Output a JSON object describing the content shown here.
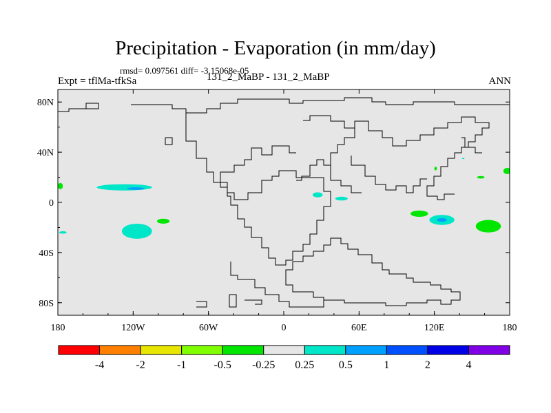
{
  "chart_data": {
    "type": "heatmap",
    "title": "Precipitation - Evaporation (in mm/day)",
    "stats": "rmsd= 0.097561 diff= -3.15068e-05",
    "case_label": "131_2_MaBP - 131_2_MaBP",
    "expt_label": "Expt = tflMa-tfkSa",
    "season": "ANN",
    "xlabel": "",
    "ylabel": "",
    "xlim": [
      -180,
      180
    ],
    "ylim": [
      -90,
      90
    ],
    "x_ticks": [
      {
        "value": -180,
        "label": "180"
      },
      {
        "value": -120,
        "label": "120W"
      },
      {
        "value": -60,
        "label": "60W"
      },
      {
        "value": 0,
        "label": "0"
      },
      {
        "value": 60,
        "label": "60E"
      },
      {
        "value": 120,
        "label": "120E"
      },
      {
        "value": 180,
        "label": "180"
      }
    ],
    "y_ticks": [
      {
        "value": 80,
        "label": "80N"
      },
      {
        "value": 40,
        "label": "40N"
      },
      {
        "value": 0,
        "label": "0"
      },
      {
        "value": -40,
        "label": "40S"
      },
      {
        "value": -80,
        "label": "80S"
      }
    ],
    "colorbar": {
      "colors": [
        "#ff0000",
        "#ff8000",
        "#e6e600",
        "#80ff00",
        "#00e600",
        "#e6e6e6",
        "#00e6c8",
        "#00a0ff",
        "#0050ff",
        "#0000e6",
        "#8000e6"
      ],
      "labels": [
        "-4",
        "-2",
        "-1",
        "-0.5",
        "-0.25",
        "0.25",
        "0.5",
        "1",
        "2",
        "4"
      ]
    },
    "background_color": "#e6e6e6",
    "anomaly_regions": [
      {
        "level": "0.25 to 0.5",
        "color": "#00e6c8",
        "center": [
          -127,
          12
        ],
        "half_width": [
          22,
          2.5
        ]
      },
      {
        "level": "0.5 to 1",
        "color": "#00a0ff",
        "center": [
          -118,
          11
        ],
        "half_width": [
          7,
          1
        ]
      },
      {
        "level": "-0.5 to -0.25",
        "color": "#00e600",
        "center": [
          -178,
          13
        ],
        "half_width": [
          2,
          2.5
        ]
      },
      {
        "level": "0.25 to 0.5",
        "color": "#00e6c8",
        "center": [
          -117,
          -23
        ],
        "half_width": [
          12,
          6
        ]
      },
      {
        "level": "0.25 to 0.5",
        "color": "#00e6c8",
        "center": [
          -176,
          -24
        ],
        "half_width": [
          3,
          1
        ]
      },
      {
        "level": "-0.5 to -0.25",
        "color": "#00e600",
        "center": [
          -96,
          -15
        ],
        "half_width": [
          5,
          2
        ]
      },
      {
        "level": "0.25 to 0.5",
        "color": "#00e6c8",
        "center": [
          27,
          6
        ],
        "half_width": [
          4,
          2
        ]
      },
      {
        "level": "0.25 to 0.5",
        "color": "#00e6c8",
        "center": [
          46,
          3
        ],
        "half_width": [
          5,
          1.5
        ]
      },
      {
        "level": "-0.5 to -0.25",
        "color": "#00e600",
        "center": [
          108,
          -9
        ],
        "half_width": [
          7,
          2.5
        ]
      },
      {
        "level": "0.25 to 0.5",
        "color": "#00e6c8",
        "center": [
          126,
          -14
        ],
        "half_width": [
          10,
          4
        ]
      },
      {
        "level": "0.5 to 1",
        "color": "#00a0ff",
        "center": [
          126,
          -14
        ],
        "half_width": [
          4,
          1.5
        ]
      },
      {
        "level": "-0.5 to -0.25",
        "color": "#00e600",
        "center": [
          163,
          -19
        ],
        "half_width": [
          10,
          5
        ]
      },
      {
        "level": "-0.5 to -0.25",
        "color": "#00e600",
        "center": [
          178,
          25
        ],
        "half_width": [
          3,
          2.5
        ]
      },
      {
        "level": "0.25 to 0.5",
        "color": "#00e6c8",
        "center": [
          143,
          35
        ],
        "half_width": [
          1,
          0.5
        ]
      },
      {
        "level": "-0.5 to -0.25",
        "color": "#00e600",
        "center": [
          157,
          20
        ],
        "half_width": [
          3,
          1
        ]
      },
      {
        "level": "-0.5 to -0.25",
        "color": "#00e600",
        "center": [
          121,
          27
        ],
        "half_width": [
          1,
          1.5
        ]
      }
    ]
  }
}
